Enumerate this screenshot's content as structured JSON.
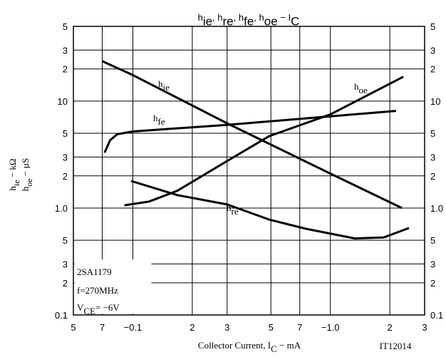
{
  "chart_data": {
    "type": "line",
    "title": [
      "h",
      "ie",
      ", h",
      "re",
      ", h",
      "fe",
      ", h",
      "oe",
      " − I",
      "C"
    ],
    "x_label": [
      "Collector Current, I",
      "C",
      " − mA"
    ],
    "y_label": [
      [
        "h",
        "ie",
        " − kΩ"
      ],
      [
        "h",
        "oe",
        " − µS"
      ]
    ],
    "annotations": {
      "device": "2SA1179",
      "frequency": "f=270MHz",
      "condition": [
        "V",
        "CE",
        "= −6V"
      ],
      "code": "IT12014"
    },
    "xscale": "log",
    "yscale": "log",
    "grid": true,
    "color": "#000000",
    "xlim": [
      0.05,
      3
    ],
    "xticks": [
      {
        "value": 0.05,
        "label": "5"
      },
      {
        "value": 0.07,
        "label": "7"
      },
      {
        "value": 0.1,
        "label": "−0.1"
      },
      {
        "value": 0.2,
        "label": "2"
      },
      {
        "value": 0.3,
        "label": "3"
      },
      {
        "value": 0.5,
        "label": "5"
      },
      {
        "value": 0.7,
        "label": "7"
      },
      {
        "value": 1,
        "label": "−1.0"
      },
      {
        "value": 2,
        "label": "2"
      },
      {
        "value": 3,
        "label": "3"
      }
    ],
    "ylim": [
      0.1,
      50
    ],
    "yticks": [
      0.1,
      {
        "value": 0.2,
        "label": "2"
      },
      {
        "value": 0.3,
        "label": "3"
      },
      {
        "value": 0.5,
        "label": "5"
      },
      {
        "value": 1,
        "label": "1.0"
      },
      2,
      3,
      5,
      10,
      {
        "value": 20,
        "label": "2"
      },
      {
        "value": 30,
        "label": "3"
      },
      {
        "value": 50,
        "label": "5"
      }
    ],
    "series": [
      {
        "name": [
          "h",
          "ie"
        ],
        "color": "#000000",
        "x": [
          0.07,
          0.1,
          0.3,
          1,
          2.3
        ],
        "values": [
          23.6,
          17.5,
          6.2,
          2.1,
          1.0
        ]
      },
      {
        "name": [
          "h",
          "fe"
        ],
        "color": "#000000",
        "x": [
          0.072,
          0.0767,
          0.0833,
          0.1,
          0.3,
          1,
          2.15
        ],
        "values": [
          3.3,
          4.3,
          4.9,
          5.2,
          6.0,
          7.2,
          8.1
        ]
      },
      {
        "name": [
          "h",
          "oe"
        ],
        "color": "#000000",
        "x": [
          0.0906,
          0.121,
          0.168,
          0.3,
          0.49,
          1,
          2.34
        ],
        "values": [
          1.06,
          1.15,
          1.45,
          2.75,
          4.7,
          7.5,
          16.9
        ]
      },
      {
        "name": [
          "h",
          "re"
        ],
        "color": "#000000",
        "x": [
          0.098,
          0.168,
          0.3,
          0.49,
          0.75,
          1.33,
          1.86,
          2.5
        ],
        "values": [
          1.79,
          1.32,
          1.08,
          0.78,
          0.64,
          0.52,
          0.53,
          0.65
        ]
      }
    ]
  }
}
